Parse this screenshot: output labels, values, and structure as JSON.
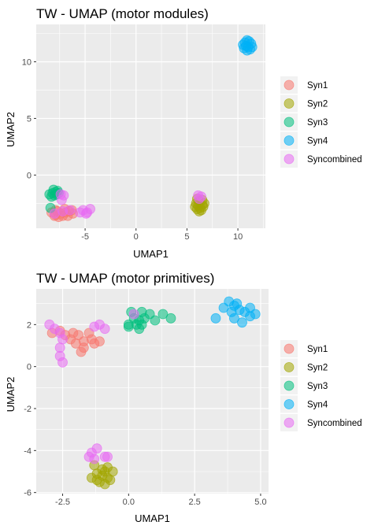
{
  "palette": {
    "Syn1": "#F8766D",
    "Syn2": "#A3A500",
    "Syn3": "#00BF7D",
    "Syn4": "#00B0F6",
    "Syncombined": "#E76BF3"
  },
  "chart_data": [
    {
      "type": "scatter",
      "title": "TW - UMAP (motor modules)",
      "xlabel": "UMAP1",
      "ylabel": "UMAP2",
      "xlim": [
        -9.8,
        12.7
      ],
      "ylim": [
        -4.7,
        13.3
      ],
      "xticks": [
        -5,
        0,
        5,
        10
      ],
      "xtick_labels": [
        "-5",
        "0",
        "5",
        "10"
      ],
      "yticks": [
        0,
        5,
        10
      ],
      "ytick_labels": [
        "0",
        "5",
        "10"
      ],
      "grid": true,
      "legend": {
        "position": "right",
        "entries": [
          "Syn1",
          "Syn2",
          "Syn3",
          "Syn4",
          "Syncombined"
        ]
      },
      "series": [
        {
          "name": "Syn1",
          "points": [
            [
              -8.3,
              -3.3
            ],
            [
              -7.9,
              -3.5
            ],
            [
              -7.6,
              -3.7
            ],
            [
              -7.2,
              -3.6
            ],
            [
              -6.9,
              -3.3
            ],
            [
              -6.6,
              -3.2
            ],
            [
              -6.3,
              -3.1
            ],
            [
              -7.0,
              -3.0
            ],
            [
              -7.7,
              -3.2
            ],
            [
              -8.0,
              -3.6
            ],
            [
              -7.4,
              -3.4
            ],
            [
              -6.7,
              -3.6
            ],
            [
              -6.2,
              -3.4
            ],
            [
              -7.9,
              -3.1
            ]
          ]
        },
        {
          "name": "Syn2",
          "points": [
            [
              5.9,
              -2.5
            ],
            [
              6.1,
              -2.7
            ],
            [
              6.3,
              -2.9
            ],
            [
              6.5,
              -2.6
            ],
            [
              6.2,
              -2.3
            ],
            [
              6.0,
              -3.0
            ],
            [
              6.4,
              -3.1
            ],
            [
              6.6,
              -2.8
            ],
            [
              5.8,
              -2.8
            ],
            [
              6.7,
              -2.5
            ],
            [
              6.2,
              -3.2
            ],
            [
              6.0,
              -2.1
            ],
            [
              6.5,
              -2.2
            ]
          ]
        },
        {
          "name": "Syn3",
          "points": [
            [
              -8.5,
              -1.7
            ],
            [
              -8.2,
              -1.6
            ],
            [
              -7.9,
              -1.5
            ],
            [
              -7.7,
              -1.4
            ],
            [
              -8.0,
              -1.8
            ],
            [
              -8.3,
              -1.9
            ],
            [
              -7.8,
              -1.7
            ],
            [
              -7.6,
              -1.6
            ],
            [
              -8.1,
              -1.3
            ],
            [
              -8.4,
              -2.9
            ]
          ]
        },
        {
          "name": "Syn4",
          "points": [
            [
              10.5,
              11.5
            ],
            [
              10.7,
              11.7
            ],
            [
              10.9,
              11.9
            ],
            [
              11.1,
              11.8
            ],
            [
              11.3,
              11.6
            ],
            [
              11.4,
              11.3
            ],
            [
              11.2,
              11.1
            ],
            [
              10.9,
              11.0
            ],
            [
              10.6,
              11.2
            ],
            [
              10.8,
              11.4
            ],
            [
              11.0,
              11.3
            ]
          ]
        },
        {
          "name": "Syncombined",
          "points": [
            [
              -7.4,
              -1.7
            ],
            [
              -7.1,
              -1.8
            ],
            [
              -7.3,
              -2.2
            ],
            [
              -8.0,
              -3.4
            ],
            [
              -7.2,
              -3.2
            ],
            [
              -6.5,
              -3.1
            ],
            [
              -5.5,
              -3.3
            ],
            [
              -5.2,
              -3.1
            ],
            [
              -4.8,
              -3.3
            ],
            [
              -4.5,
              -3.0
            ],
            [
              -4.9,
              -3.4
            ],
            [
              6.1,
              -1.8
            ],
            [
              6.4,
              -1.9
            ],
            [
              6.2,
              -2.1
            ]
          ]
        }
      ]
    },
    {
      "type": "scatter",
      "title": "TW - UMAP (motor primitives)",
      "xlabel": "UMAP1",
      "ylabel": "UMAP2",
      "xlim": [
        -3.5,
        5.3
      ],
      "ylim": [
        -6.05,
        3.7
      ],
      "xticks": [
        -2.5,
        0.0,
        2.5,
        5.0
      ],
      "xtick_labels": [
        "-2.5",
        "0.0",
        "2.5",
        "5.0"
      ],
      "yticks": [
        -6,
        -4,
        -2,
        0,
        2
      ],
      "ytick_labels": [
        "-6",
        "-4",
        "-2",
        "0",
        "2"
      ],
      "grid": true,
      "legend": {
        "position": "right",
        "entries": [
          "Syn1",
          "Syn2",
          "Syn3",
          "Syn4",
          "Syncombined"
        ]
      },
      "series": [
        {
          "name": "Syn1",
          "points": [
            [
              -2.9,
              1.6
            ],
            [
              -2.6,
              1.7
            ],
            [
              -2.4,
              1.5
            ],
            [
              -2.2,
              1.3
            ],
            [
              -2.1,
              1.6
            ],
            [
              -1.9,
              1.5
            ],
            [
              -1.7,
              1.2
            ],
            [
              -1.5,
              1.6
            ],
            [
              -1.4,
              1.3
            ],
            [
              -1.3,
              1.1
            ],
            [
              -1.1,
              1.2
            ],
            [
              -1.7,
              0.9
            ],
            [
              -2.0,
              1.1
            ],
            [
              -1.8,
              0.7
            ]
          ]
        },
        {
          "name": "Syn2",
          "points": [
            [
              -1.4,
              -5.3
            ],
            [
              -1.2,
              -5.1
            ],
            [
              -1.0,
              -5.2
            ],
            [
              -0.9,
              -5.0
            ],
            [
              -0.8,
              -5.3
            ],
            [
              -0.7,
              -5.4
            ],
            [
              -1.1,
              -5.5
            ],
            [
              -1.3,
              -4.7
            ],
            [
              -1.0,
              -4.9
            ],
            [
              -0.6,
              -5.0
            ],
            [
              -1.2,
              -5.4
            ],
            [
              -0.9,
              -5.6
            ],
            [
              -0.8,
              -4.8
            ]
          ]
        },
        {
          "name": "Syn3",
          "points": [
            [
              0.0,
              2.0
            ],
            [
              0.2,
              2.3
            ],
            [
              0.3,
              2.0
            ],
            [
              0.4,
              2.2
            ],
            [
              0.5,
              2.0
            ],
            [
              0.6,
              2.3
            ],
            [
              0.8,
              2.5
            ],
            [
              1.0,
              2.2
            ],
            [
              0.4,
              1.8
            ],
            [
              0.1,
              2.6
            ],
            [
              1.3,
              2.5
            ],
            [
              1.6,
              2.3
            ],
            [
              0.5,
              2.6
            ],
            [
              0.0,
              1.9
            ]
          ]
        },
        {
          "name": "Syn4",
          "points": [
            [
              3.3,
              2.3
            ],
            [
              3.6,
              2.8
            ],
            [
              3.8,
              3.1
            ],
            [
              4.0,
              2.9
            ],
            [
              4.2,
              2.7
            ],
            [
              4.4,
              2.6
            ],
            [
              4.6,
              2.4
            ],
            [
              4.8,
              2.5
            ],
            [
              4.0,
              2.3
            ],
            [
              3.9,
              2.6
            ],
            [
              4.3,
              2.1
            ],
            [
              4.1,
              3.0
            ],
            [
              4.6,
              2.8
            ]
          ]
        },
        {
          "name": "Syncombined",
          "points": [
            [
              -3.0,
              2.0
            ],
            [
              -2.8,
              1.8
            ],
            [
              -2.6,
              1.6
            ],
            [
              -2.5,
              1.3
            ],
            [
              -2.6,
              0.9
            ],
            [
              -2.6,
              0.5
            ],
            [
              -2.5,
              0.2
            ],
            [
              -1.3,
              1.9
            ],
            [
              -1.1,
              2.0
            ],
            [
              -0.9,
              1.8
            ],
            [
              -1.5,
              -4.3
            ],
            [
              -1.4,
              -4.1
            ],
            [
              -1.3,
              -4.4
            ],
            [
              -1.2,
              -3.9
            ],
            [
              -0.9,
              -4.3
            ],
            [
              0.2,
              2.5
            ],
            [
              -0.8,
              -4.3
            ]
          ]
        }
      ]
    }
  ]
}
